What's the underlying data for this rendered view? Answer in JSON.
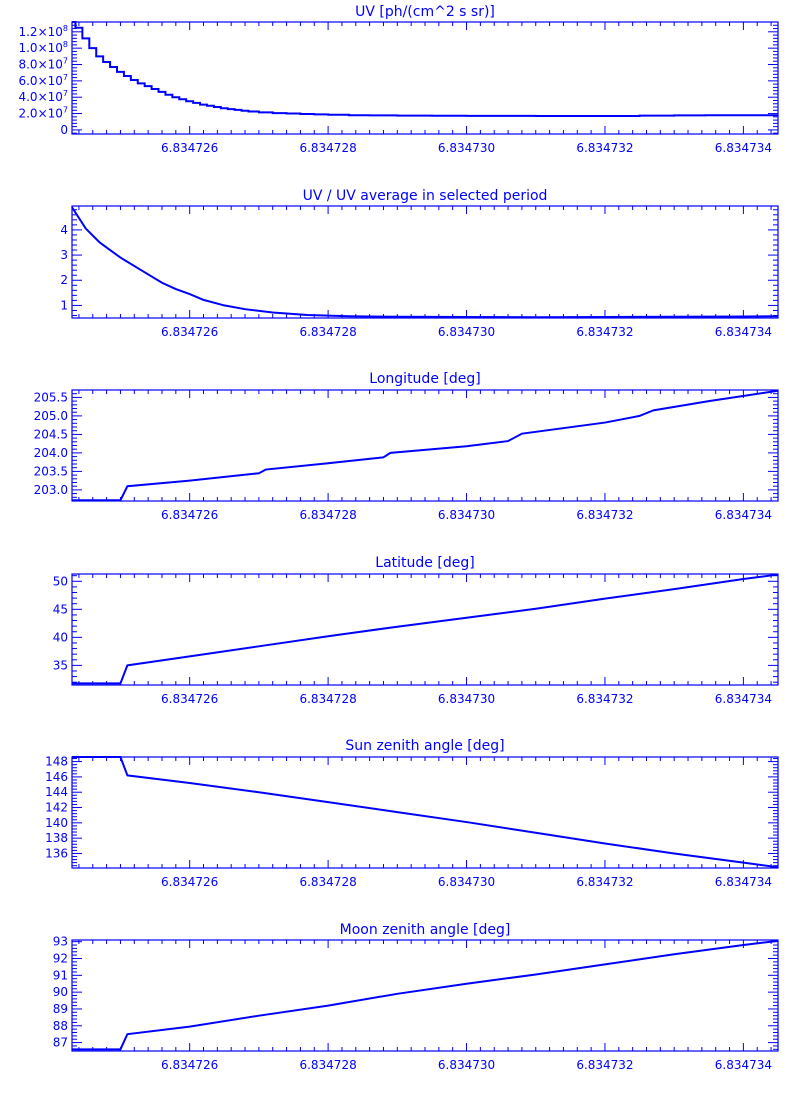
{
  "colors": {
    "line": "#0000ff",
    "background": "#ffffff"
  },
  "chart_data": [
    {
      "type": "line",
      "title": "UV [ph/(cm^2 s sr)]",
      "xlim": [
        6.8347243,
        6.8347345
      ],
      "xticks": [
        6.834726,
        6.834728,
        6.83473,
        6.834732,
        6.834734
      ],
      "xtick_labels": [
        "6.834726",
        "6.834728",
        "6.834730",
        "6.834732",
        "6.834734"
      ],
      "ylim": [
        -5000000,
        132000000
      ],
      "yticks": [
        0,
        20000000,
        40000000,
        60000000,
        80000000,
        100000000,
        120000000
      ],
      "ytick_labels": [
        {
          "mant": "0"
        },
        {
          "mant": "2.0×10",
          "exp": "7"
        },
        {
          "mant": "4.0×10",
          "exp": "7"
        },
        {
          "mant": "6.0×10",
          "exp": "7"
        },
        {
          "mant": "8.0×10",
          "exp": "7"
        },
        {
          "mant": "1.0×10",
          "exp": "8"
        },
        {
          "mant": "1.2×10",
          "exp": "8"
        }
      ],
      "step": true,
      "x": [
        6.8347243,
        6.83472435,
        6.83472445,
        6.83472455,
        6.83472465,
        6.83472475,
        6.83472485,
        6.83472495,
        6.83472505,
        6.83472515,
        6.83472525,
        6.83472535,
        6.83472545,
        6.83472555,
        6.83472565,
        6.83472575,
        6.83472585,
        6.83472595,
        6.83472605,
        6.83472615,
        6.83472625,
        6.83472635,
        6.83472645,
        6.83472655,
        6.83472665,
        6.83472675,
        6.83472685,
        6.834727,
        6.8347272,
        6.8347274,
        6.8347276,
        6.8347278,
        6.834728,
        6.8347283,
        6.8347286,
        6.834729,
        6.8347295,
        6.83473,
        6.834731,
        6.834732,
        6.8347325,
        6.834733,
        6.83473345
      ],
      "y": [
        132000000,
        125000000,
        112000000,
        100000000,
        90000000,
        83000000,
        77000000,
        71000000,
        66000000,
        61000000,
        57000000,
        53500000,
        50000000,
        46500000,
        43000000,
        40000000,
        37500000,
        35000000,
        33000000,
        31000000,
        29500000,
        28000000,
        26500000,
        25500000,
        24500000,
        23500000,
        22500000,
        21500000,
        20500000,
        20000000,
        19500000,
        19000000,
        18500000,
        18000000,
        17800000,
        17500000,
        17300000,
        17200000,
        17000000,
        17000000,
        17500000,
        17800000,
        18000000
      ]
    },
    {
      "type": "line",
      "title": "UV / UV average in selected period",
      "xlim": [
        6.8347243,
        6.8347345
      ],
      "xticks": [
        6.834726,
        6.834728,
        6.83473,
        6.834732,
        6.834734
      ],
      "xtick_labels": [
        "6.834726",
        "6.834728",
        "6.834730",
        "6.834732",
        "6.834734"
      ],
      "ylim": [
        0.5,
        4.95
      ],
      "yticks": [
        1,
        2,
        3,
        4
      ],
      "ytick_labels": [
        {
          "mant": "1"
        },
        {
          "mant": "2"
        },
        {
          "mant": "3"
        },
        {
          "mant": "4"
        }
      ],
      "x": [
        6.8347243,
        6.8347245,
        6.8347247,
        6.834725,
        6.8347253,
        6.8347256,
        6.8347258,
        6.834726,
        6.8347262,
        6.8347265,
        6.8347268,
        6.8347272,
        6.8347277,
        6.8347283,
        6.834729,
        6.83473,
        6.834731,
        6.834732,
        6.834733,
        6.834734,
        6.8347345
      ],
      "y": [
        4.9,
        4.05,
        3.5,
        2.9,
        2.4,
        1.9,
        1.65,
        1.45,
        1.22,
        1.0,
        0.85,
        0.72,
        0.62,
        0.57,
        0.55,
        0.54,
        0.53,
        0.54,
        0.55,
        0.56,
        0.57
      ]
    },
    {
      "type": "line",
      "title": "Longitude [deg]",
      "xlim": [
        6.8347243,
        6.8347345
      ],
      "xticks": [
        6.834726,
        6.834728,
        6.83473,
        6.834732,
        6.834734
      ],
      "xtick_labels": [
        "6.834726",
        "6.834728",
        "6.834730",
        "6.834732",
        "6.834734"
      ],
      "ylim": [
        202.7,
        205.7
      ],
      "yticks": [
        203.0,
        203.5,
        204.0,
        204.5,
        205.0,
        205.5
      ],
      "ytick_labels": [
        {
          "mant": "203.0"
        },
        {
          "mant": "203.5"
        },
        {
          "mant": "204.0"
        },
        {
          "mant": "204.5"
        },
        {
          "mant": "205.0"
        },
        {
          "mant": "205.5"
        }
      ],
      "x": [
        6.8347243,
        6.834725,
        6.8347251,
        6.834726,
        6.834727,
        6.8347271,
        6.834728,
        6.8347288,
        6.8347289,
        6.83473,
        6.8347306,
        6.8347308,
        6.834732,
        6.8347325,
        6.8347327,
        6.8347335,
        6.8347345
      ],
      "y": [
        202.72,
        202.72,
        203.1,
        203.25,
        203.45,
        203.55,
        203.72,
        203.88,
        204.0,
        204.18,
        204.32,
        204.52,
        204.82,
        205.0,
        205.15,
        205.4,
        205.68
      ]
    },
    {
      "type": "line",
      "title": "Latitude [deg]",
      "xlim": [
        6.8347243,
        6.8347345
      ],
      "xticks": [
        6.834726,
        6.834728,
        6.83473,
        6.834732,
        6.834734
      ],
      "xtick_labels": [
        "6.834726",
        "6.834728",
        "6.834730",
        "6.834732",
        "6.834734"
      ],
      "ylim": [
        31.5,
        51.3
      ],
      "yticks": [
        35,
        40,
        45,
        50
      ],
      "ytick_labels": [
        {
          "mant": "35"
        },
        {
          "mant": "40"
        },
        {
          "mant": "45"
        },
        {
          "mant": "50"
        }
      ],
      "x": [
        6.8347243,
        6.834725,
        6.8347251,
        6.834726,
        6.834727,
        6.834728,
        6.834729,
        6.83473,
        6.834731,
        6.834732,
        6.834733,
        6.834734,
        6.8347345
      ],
      "y": [
        31.8,
        31.8,
        35.0,
        36.6,
        38.4,
        40.2,
        41.9,
        43.5,
        45.1,
        46.9,
        48.6,
        50.4,
        51.2
      ]
    },
    {
      "type": "line",
      "title": "Sun zenith angle [deg]",
      "xlim": [
        6.8347243,
        6.8347345
      ],
      "xticks": [
        6.834726,
        6.834728,
        6.83473,
        6.834732,
        6.834734
      ],
      "xtick_labels": [
        "6.834726",
        "6.834728",
        "6.834730",
        "6.834732",
        "6.834734"
      ],
      "ylim": [
        134.1,
        148.6
      ],
      "yticks": [
        136,
        138,
        140,
        142,
        144,
        146,
        148
      ],
      "ytick_labels": [
        {
          "mant": "136"
        },
        {
          "mant": "138"
        },
        {
          "mant": "140"
        },
        {
          "mant": "142"
        },
        {
          "mant": "144"
        },
        {
          "mant": "146"
        },
        {
          "mant": "148"
        }
      ],
      "x": [
        6.8347243,
        6.834725,
        6.8347251,
        6.834726,
        6.834727,
        6.834728,
        6.834729,
        6.83473,
        6.834731,
        6.834732,
        6.834733,
        6.834734,
        6.8347345
      ],
      "y": [
        148.6,
        148.6,
        146.2,
        145.2,
        144.0,
        142.7,
        141.4,
        140.1,
        138.7,
        137.3,
        136.0,
        134.8,
        134.2
      ]
    },
    {
      "type": "line",
      "title": "Moon zenith angle [deg]",
      "xlim": [
        6.8347243,
        6.8347345
      ],
      "xticks": [
        6.834726,
        6.834728,
        6.83473,
        6.834732,
        6.834734
      ],
      "xtick_labels": [
        "6.834726",
        "6.834728",
        "6.834730",
        "6.834732",
        "6.834734"
      ],
      "ylim": [
        86.5,
        93.1
      ],
      "yticks": [
        87,
        88,
        89,
        90,
        91,
        92,
        93
      ],
      "ytick_labels": [
        {
          "mant": "87"
        },
        {
          "mant": "88"
        },
        {
          "mant": "89"
        },
        {
          "mant": "90"
        },
        {
          "mant": "91"
        },
        {
          "mant": "92"
        },
        {
          "mant": "93"
        }
      ],
      "x": [
        6.8347243,
        6.834725,
        6.8347251,
        6.834726,
        6.834727,
        6.834728,
        6.834729,
        6.83473,
        6.834731,
        6.834732,
        6.834733,
        6.834734,
        6.8347345
      ],
      "y": [
        86.6,
        86.6,
        87.5,
        87.95,
        88.6,
        89.2,
        89.9,
        90.5,
        91.05,
        91.65,
        92.25,
        92.8,
        93.05
      ]
    }
  ]
}
